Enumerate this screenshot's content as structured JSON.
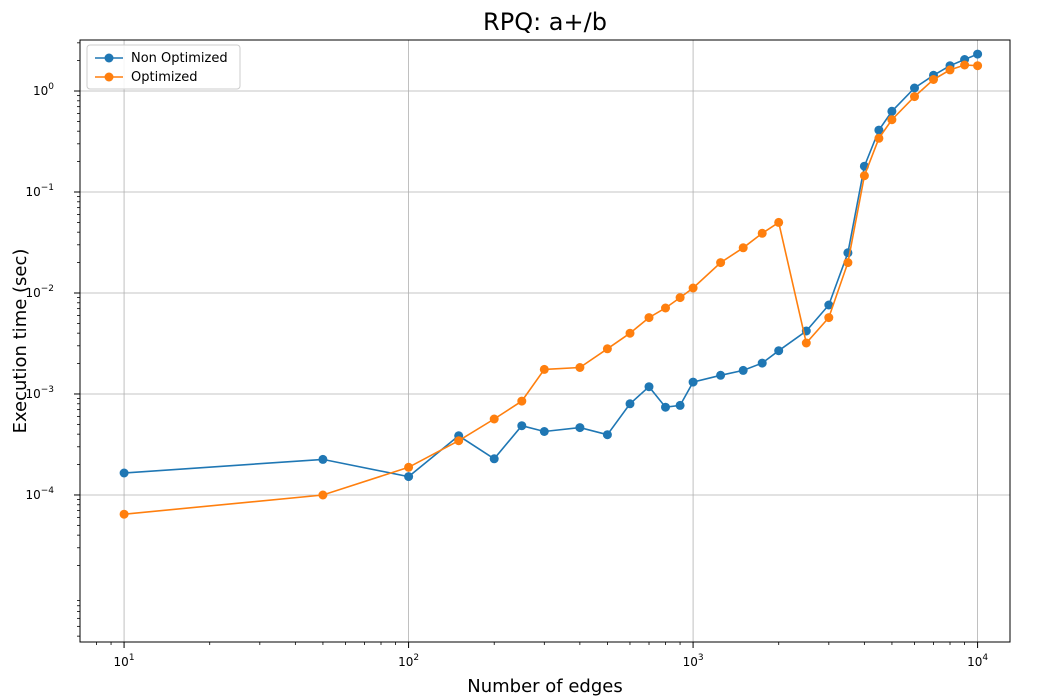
{
  "chart_data": {
    "type": "line",
    "title": "RPQ: a+/b",
    "xlabel": "Number of edges",
    "ylabel": "Execution time (sec)",
    "xscale": "log",
    "yscale": "log",
    "xlim": [
      7,
      13000
    ],
    "ylim": [
      3.5e-06,
      3.2
    ],
    "grid": true,
    "legend_position": "top-left",
    "x_ticks": [
      {
        "value": 10,
        "base": "10",
        "exp": "1"
      },
      {
        "value": 100,
        "base": "10",
        "exp": "2"
      },
      {
        "value": 1000,
        "base": "10",
        "exp": "3"
      },
      {
        "value": 10000,
        "base": "10",
        "exp": "4"
      }
    ],
    "y_ticks": [
      {
        "value": 0.0001,
        "base": "10",
        "exp": "−4"
      },
      {
        "value": 0.001,
        "base": "10",
        "exp": "−3"
      },
      {
        "value": 0.01,
        "base": "10",
        "exp": "−2"
      },
      {
        "value": 0.1,
        "base": "10",
        "exp": "−1"
      },
      {
        "value": 1,
        "base": "10",
        "exp": "0"
      }
    ],
    "x": [
      10,
      50,
      100,
      150,
      200,
      250,
      300,
      400,
      500,
      600,
      700,
      800,
      900,
      1000,
      1250,
      1500,
      1750,
      2000,
      2500,
      3000,
      3500,
      4000,
      4500,
      5000,
      6000,
      7000,
      8000,
      9000,
      10000
    ],
    "series": [
      {
        "name": "Non Optimized",
        "color": "#1f77b4",
        "values": [
          0.000165,
          0.000225,
          0.000152,
          0.000385,
          0.000228,
          0.000485,
          0.000425,
          0.000465,
          0.000395,
          0.0008,
          0.00118,
          0.00074,
          0.00077,
          0.00131,
          0.00153,
          0.00171,
          0.00202,
          0.00268,
          0.0042,
          0.0076,
          0.025,
          0.18,
          0.41,
          0.63,
          1.07,
          1.43,
          1.78,
          2.05,
          2.32
        ]
      },
      {
        "name": "Optimized",
        "color": "#ff7f0e",
        "values": [
          6.45e-05,
          0.0001,
          0.000188,
          0.000345,
          0.000565,
          0.00085,
          0.00175,
          0.00183,
          0.0028,
          0.004,
          0.0057,
          0.0071,
          0.009,
          0.0112,
          0.02,
          0.028,
          0.039,
          0.05,
          0.0032,
          0.0057,
          0.02,
          0.145,
          0.34,
          0.52,
          0.88,
          1.3,
          1.62,
          1.81,
          1.78
        ]
      }
    ]
  }
}
